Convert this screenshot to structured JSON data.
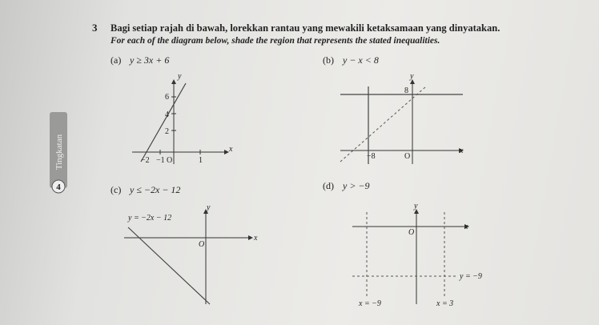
{
  "question": {
    "number": "3",
    "malay": "Bagi setiap rajah di bawah, lorekkan rantau yang mewakili ketaksamaan yang dinyatakan.",
    "english": "For each of the diagram below, shade the region that represents the stated inequalities."
  },
  "side_tab": {
    "label": "Tingkatan",
    "number": "4"
  },
  "parts": [
    {
      "label": "(a)",
      "inequality": "y ≥ 3x + 6",
      "diagram": {
        "x_axis": "x",
        "y_axis": "y",
        "ticks": [
          "6",
          "4",
          "2",
          "−2",
          "−1",
          "O",
          "1"
        ]
      }
    },
    {
      "label": "(b)",
      "inequality": "y − x < 8",
      "diagram": {
        "x_axis": "x",
        "y_axis": "y",
        "ticks": [
          "8",
          "−8",
          "O"
        ]
      }
    },
    {
      "label": "(c)",
      "inequality": "y ≤ −2x − 12",
      "diagram": {
        "x_axis": "x",
        "y_axis": "y",
        "origin": "O",
        "line_label": "y = −2x − 12"
      }
    },
    {
      "label": "(d)",
      "inequality": "y > −9",
      "diagram": {
        "x_axis": "x",
        "y_axis": "y",
        "origin": "O",
        "line_labels": [
          "y = −9",
          "x = −9",
          "x = 3"
        ]
      }
    }
  ]
}
